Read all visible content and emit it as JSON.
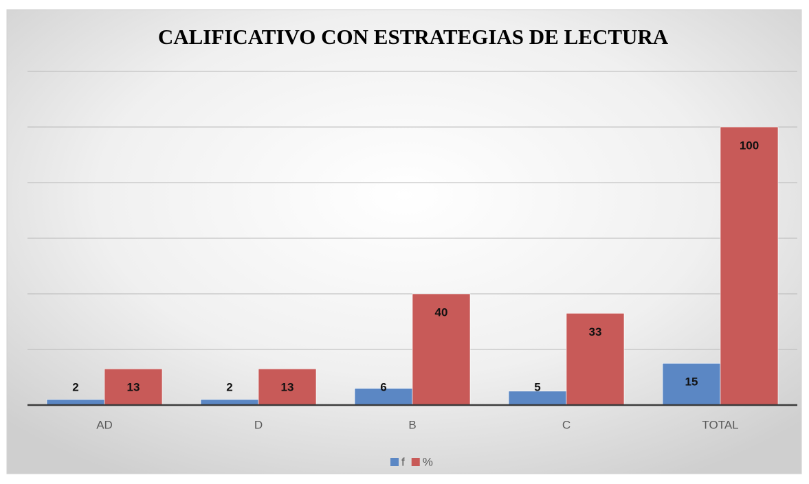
{
  "chart_data": {
    "type": "bar",
    "title": "CALIFICATIVO CON ESTRATEGIAS DE LECTURA",
    "categories": [
      "AD",
      "D",
      "B",
      "C",
      "TOTAL"
    ],
    "series": [
      {
        "name": "f",
        "color": "#5b87c4",
        "values": [
          2,
          2,
          6,
          5,
          15
        ]
      },
      {
        "name": "%",
        "color": "#c85a58",
        "values": [
          13,
          13,
          40,
          33,
          100
        ]
      }
    ],
    "ylim": [
      0,
      120
    ],
    "yticks": [
      0,
      20,
      40,
      60,
      80,
      100,
      120
    ],
    "grid": true,
    "legend": "bottom"
  }
}
